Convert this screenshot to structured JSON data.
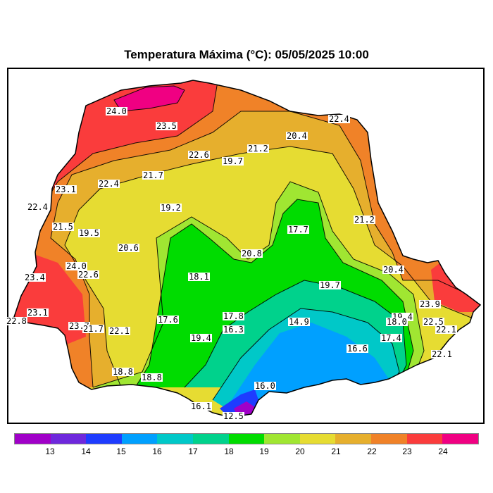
{
  "title": "Temperatura Máxima (°C): 05/05/2025 10:00",
  "legend": {
    "colors": [
      "#a000c8",
      "#6e28dc",
      "#1e3cff",
      "#00a0ff",
      "#00c8c8",
      "#00d28c",
      "#00dc00",
      "#a0e632",
      "#e6dc32",
      "#e6af2d",
      "#f08228",
      "#fa3c3c",
      "#f00082"
    ],
    "ticks": [
      "13",
      "14",
      "15",
      "16",
      "17",
      "18",
      "19",
      "20",
      "21",
      "22",
      "23",
      "24"
    ]
  },
  "labels": [
    {
      "text": "24.0"
    },
    {
      "text": "23.5"
    },
    {
      "text": "22.4"
    },
    {
      "text": "20.4"
    },
    {
      "text": "21.2"
    },
    {
      "text": "22.6"
    },
    {
      "text": "19.7"
    },
    {
      "text": "21.7"
    },
    {
      "text": "23.1"
    },
    {
      "text": "22.4"
    },
    {
      "text": "22.4"
    },
    {
      "text": "19.2"
    },
    {
      "text": "21.5"
    },
    {
      "text": "19.5"
    },
    {
      "text": "17.7"
    },
    {
      "text": "21.2"
    },
    {
      "text": "20.6"
    },
    {
      "text": "20.8"
    },
    {
      "text": "24.0"
    },
    {
      "text": "22.6"
    },
    {
      "text": "18.1"
    },
    {
      "text": "23.4"
    },
    {
      "text": "20.4"
    },
    {
      "text": "19.7"
    },
    {
      "text": "23.9"
    },
    {
      "text": "23.1"
    },
    {
      "text": "17.6"
    },
    {
      "text": "17.8"
    },
    {
      "text": "19.4"
    },
    {
      "text": "22.8"
    },
    {
      "text": "23.7"
    },
    {
      "text": "21.7"
    },
    {
      "text": "22.1"
    },
    {
      "text": "16.3"
    },
    {
      "text": "14.9"
    },
    {
      "text": "18.0"
    },
    {
      "text": "22.5"
    },
    {
      "text": "22.1"
    },
    {
      "text": "19.4"
    },
    {
      "text": "17.4"
    },
    {
      "text": "16.6"
    },
    {
      "text": "22.1"
    },
    {
      "text": "18.8"
    },
    {
      "text": "18.8"
    },
    {
      "text": "16.0"
    },
    {
      "text": "16.1"
    },
    {
      "text": "12.5"
    }
  ]
}
